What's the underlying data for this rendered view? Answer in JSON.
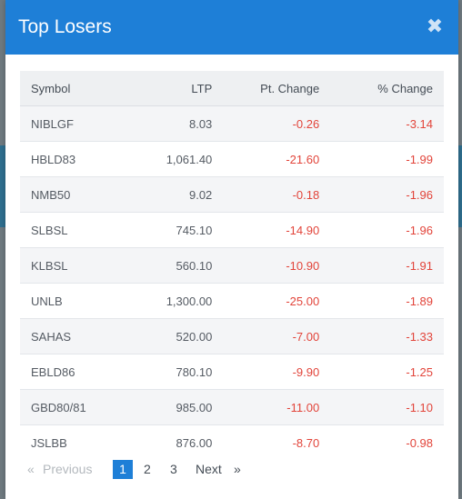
{
  "modal": {
    "title": "Top Losers",
    "close_symbol": "✖"
  },
  "table": {
    "headers": {
      "symbol": "Symbol",
      "ltp": "LTP",
      "pt_change": "Pt. Change",
      "pct_change": "% Change"
    },
    "rows": [
      {
        "symbol": "NIBLGF",
        "ltp": "8.03",
        "pt_change": "-0.26",
        "pct_change": "-3.14"
      },
      {
        "symbol": "HBLD83",
        "ltp": "1,061.40",
        "pt_change": "-21.60",
        "pct_change": "-1.99"
      },
      {
        "symbol": "NMB50",
        "ltp": "9.02",
        "pt_change": "-0.18",
        "pct_change": "-1.96"
      },
      {
        "symbol": "SLBSL",
        "ltp": "745.10",
        "pt_change": "-14.90",
        "pct_change": "-1.96"
      },
      {
        "symbol": "KLBSL",
        "ltp": "560.10",
        "pt_change": "-10.90",
        "pct_change": "-1.91"
      },
      {
        "symbol": "UNLB",
        "ltp": "1,300.00",
        "pt_change": "-25.00",
        "pct_change": "-1.89"
      },
      {
        "symbol": "SAHAS",
        "ltp": "520.00",
        "pt_change": "-7.00",
        "pct_change": "-1.33"
      },
      {
        "symbol": "EBLD86",
        "ltp": "780.10",
        "pt_change": "-9.90",
        "pct_change": "-1.25"
      },
      {
        "symbol": "GBD80/81",
        "ltp": "985.00",
        "pt_change": "-11.00",
        "pct_change": "-1.10"
      },
      {
        "symbol": "JSLBB",
        "ltp": "876.00",
        "pt_change": "-8.70",
        "pct_change": "-0.98"
      }
    ]
  },
  "pagination": {
    "first_symbol": "«",
    "previous_label": "Previous",
    "pages": [
      "1",
      "2",
      "3"
    ],
    "current_page": "1",
    "next_label": "Next",
    "last_symbol": "»"
  },
  "colors": {
    "header_bg": "#1e7fd7",
    "negative": "#e2443a",
    "active_page": "#1e7fd7"
  }
}
